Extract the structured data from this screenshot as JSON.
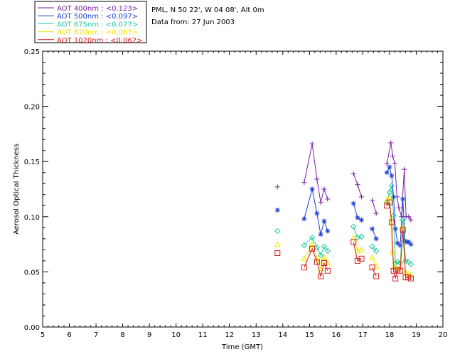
{
  "chart_data": {
    "type": "line",
    "info_lines": [
      "PML, N 50 22', W 04 08', Alt 0m",
      "Data from: 27 Jun 2003"
    ],
    "xlabel": "Time (GMT)",
    "ylabel": "Aerosol Optical Thickness",
    "xlim": [
      5,
      20
    ],
    "ylim": [
      0,
      0.25
    ],
    "x_ticks": [
      "5",
      "6",
      "7",
      "8",
      "9",
      "10",
      "11",
      "12",
      "13",
      "14",
      "15",
      "16",
      "17",
      "18",
      "19",
      "20"
    ],
    "y_ticks": [
      "0.00",
      "0.05",
      "0.10",
      "0.15",
      "0.20",
      "0.25"
    ],
    "grid": false,
    "legend_position": "top-left",
    "series": [
      {
        "name": "AOT  400nm : <0.123>",
        "color": "#7a1fa2",
        "marker": "plus",
        "points": [
          [
            13.8,
            0.127
          ],
          [
            14.8,
            0.131
          ],
          [
            15.1,
            0.166
          ],
          [
            15.28,
            0.134
          ],
          [
            15.42,
            0.113
          ],
          [
            15.55,
            0.125
          ],
          [
            15.68,
            0.116
          ],
          [
            16.65,
            0.139
          ],
          [
            16.8,
            0.129
          ],
          [
            16.95,
            0.118
          ],
          [
            17.35,
            0.115
          ],
          [
            17.5,
            0.103
          ],
          [
            17.9,
            0.148
          ],
          [
            18.05,
            0.167
          ],
          [
            18.12,
            0.155
          ],
          [
            18.2,
            0.148
          ],
          [
            18.28,
            0.118
          ],
          [
            18.35,
            0.108
          ],
          [
            18.45,
            0.1
          ],
          [
            18.55,
            0.143
          ],
          [
            18.62,
            0.1
          ],
          [
            18.72,
            0.1
          ],
          [
            18.8,
            0.097
          ]
        ],
        "segments": [
          [
            0,
            0
          ],
          [
            1,
            6
          ],
          [
            7,
            9
          ],
          [
            10,
            11
          ],
          [
            12,
            22
          ]
        ]
      },
      {
        "name": "AOT  500nm : <0.097>",
        "color": "#1e3fd6",
        "marker": "asterisk",
        "points": [
          [
            13.8,
            0.106
          ],
          [
            14.8,
            0.098
          ],
          [
            15.1,
            0.125
          ],
          [
            15.28,
            0.103
          ],
          [
            15.42,
            0.084
          ],
          [
            15.55,
            0.096
          ],
          [
            15.68,
            0.087
          ],
          [
            16.65,
            0.112
          ],
          [
            16.8,
            0.099
          ],
          [
            16.95,
            0.097
          ],
          [
            17.35,
            0.089
          ],
          [
            17.5,
            0.08
          ],
          [
            17.9,
            0.14
          ],
          [
            18.0,
            0.145
          ],
          [
            18.08,
            0.137
          ],
          [
            18.15,
            0.118
          ],
          [
            18.22,
            0.089
          ],
          [
            18.3,
            0.076
          ],
          [
            18.4,
            0.074
          ],
          [
            18.5,
            0.116
          ],
          [
            18.58,
            0.078
          ],
          [
            18.66,
            0.077
          ],
          [
            18.72,
            0.077
          ],
          [
            18.8,
            0.075
          ]
        ],
        "segments": [
          [
            0,
            0
          ],
          [
            1,
            6
          ],
          [
            7,
            9
          ],
          [
            10,
            11
          ],
          [
            12,
            23
          ]
        ]
      },
      {
        "name": "AOT  675nm : <0.077>",
        "color": "#1fc9a0",
        "marker": "diamond",
        "points": [
          [
            13.8,
            0.087
          ],
          [
            14.8,
            0.074
          ],
          [
            15.1,
            0.081
          ],
          [
            15.28,
            0.072
          ],
          [
            15.42,
            0.065
          ],
          [
            15.55,
            0.073
          ],
          [
            15.68,
            0.069
          ],
          [
            16.65,
            0.091
          ],
          [
            16.8,
            0.081
          ],
          [
            16.95,
            0.082
          ],
          [
            17.35,
            0.073
          ],
          [
            17.5,
            0.069
          ],
          [
            17.9,
            0.113
          ],
          [
            18.0,
            0.122
          ],
          [
            18.08,
            0.128
          ],
          [
            18.15,
            0.101
          ],
          [
            18.22,
            0.058
          ],
          [
            18.3,
            0.059
          ],
          [
            18.4,
            0.058
          ],
          [
            18.5,
            0.097
          ],
          [
            18.6,
            0.06
          ],
          [
            18.7,
            0.059
          ],
          [
            18.8,
            0.057
          ]
        ],
        "segments": [
          [
            0,
            0
          ],
          [
            1,
            6
          ],
          [
            7,
            9
          ],
          [
            10,
            11
          ],
          [
            12,
            22
          ]
        ]
      },
      {
        "name": "AOT  870nm : <0.067>",
        "color": "#f2e600",
        "marker": "triangle",
        "points": [
          [
            13.8,
            0.075
          ],
          [
            14.8,
            0.062
          ],
          [
            15.1,
            0.075
          ],
          [
            15.28,
            0.062
          ],
          [
            15.42,
            0.053
          ],
          [
            15.55,
            0.063
          ],
          [
            15.68,
            0.058
          ],
          [
            16.65,
            0.081
          ],
          [
            16.8,
            0.069
          ],
          [
            16.95,
            0.07
          ],
          [
            17.35,
            0.063
          ],
          [
            17.5,
            0.055
          ],
          [
            17.9,
            0.115
          ],
          [
            18.0,
            0.117
          ],
          [
            18.1,
            0.068
          ],
          [
            18.2,
            0.055
          ],
          [
            18.3,
            0.052
          ],
          [
            18.4,
            0.054
          ],
          [
            18.5,
            0.09
          ],
          [
            18.6,
            0.05
          ],
          [
            18.7,
            0.048
          ],
          [
            18.8,
            0.047
          ]
        ],
        "segments": [
          [
            0,
            0
          ],
          [
            1,
            6
          ],
          [
            7,
            9
          ],
          [
            10,
            11
          ],
          [
            12,
            21
          ]
        ]
      },
      {
        "name": "AOT 1020nm : <0.062>",
        "color": "#d61a1a",
        "marker": "square",
        "points": [
          [
            13.8,
            0.067
          ],
          [
            14.8,
            0.054
          ],
          [
            15.1,
            0.071
          ],
          [
            15.28,
            0.059
          ],
          [
            15.42,
            0.046
          ],
          [
            15.55,
            0.058
          ],
          [
            15.68,
            0.051
          ],
          [
            16.65,
            0.077
          ],
          [
            16.8,
            0.06
          ],
          [
            16.95,
            0.062
          ],
          [
            17.35,
            0.054
          ],
          [
            17.5,
            0.046
          ],
          [
            17.9,
            0.11
          ],
          [
            18.0,
            0.113
          ],
          [
            18.08,
            0.095
          ],
          [
            18.15,
            0.051
          ],
          [
            18.22,
            0.044
          ],
          [
            18.3,
            0.052
          ],
          [
            18.4,
            0.051
          ],
          [
            18.5,
            0.088
          ],
          [
            18.6,
            0.045
          ],
          [
            18.7,
            0.045
          ],
          [
            18.8,
            0.044
          ]
        ],
        "segments": [
          [
            0,
            0
          ],
          [
            1,
            6
          ],
          [
            7,
            9
          ],
          [
            10,
            11
          ],
          [
            12,
            22
          ]
        ]
      }
    ]
  }
}
